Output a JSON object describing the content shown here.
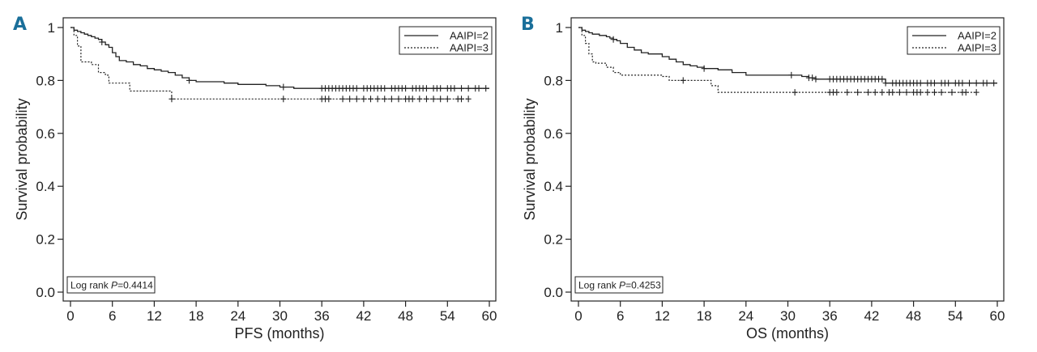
{
  "colors": {
    "panel_letter": "#1a6f9a",
    "line": "#222222"
  },
  "chart_data": [
    {
      "panel": "A",
      "type": "line",
      "xlabel": "PFS (months)",
      "ylabel": "Survival probability",
      "xlim": [
        0,
        60
      ],
      "ylim": [
        0,
        1
      ],
      "xticks": [
        0,
        6,
        12,
        18,
        24,
        30,
        36,
        42,
        48,
        54,
        60
      ],
      "yticks": [
        0.0,
        0.2,
        0.4,
        0.6,
        0.8,
        1
      ],
      "ytick_labels": [
        "0.0",
        "0.2",
        "0.4",
        "0.6",
        "0.8",
        "1"
      ],
      "grid": false,
      "legend_position": "top-right",
      "annotation": {
        "prefix": "Log rank ",
        "p_symbol": "P",
        "value": "=0.4414"
      },
      "series": [
        {
          "name": "AAIPI=2",
          "style": "solid",
          "x": [
            0,
            0.5,
            1,
            1.5,
            2,
            2.5,
            3,
            3.5,
            4,
            4.5,
            5,
            5.5,
            6,
            6.5,
            7,
            7.5,
            8,
            9,
            10,
            11,
            12,
            13,
            14,
            15,
            16,
            17,
            18,
            20,
            22,
            24,
            26,
            28,
            30,
            32,
            60
          ],
          "y": [
            1,
            0.99,
            0.985,
            0.98,
            0.975,
            0.97,
            0.965,
            0.96,
            0.955,
            0.945,
            0.935,
            0.925,
            0.905,
            0.89,
            0.875,
            0.875,
            0.87,
            0.86,
            0.855,
            0.845,
            0.84,
            0.835,
            0.83,
            0.82,
            0.81,
            0.8,
            0.795,
            0.795,
            0.79,
            0.785,
            0.785,
            0.78,
            0.775,
            0.77,
            0.77
          ],
          "censored": [
            4.5,
            17,
            30.5,
            36,
            36.5,
            37,
            37.5,
            38,
            38.5,
            39,
            39.5,
            40,
            40.5,
            41,
            42,
            42.5,
            43,
            43.5,
            44,
            44.5,
            45,
            46,
            46.5,
            47,
            47.5,
            48,
            49,
            49.5,
            50,
            50.5,
            51,
            52,
            52.5,
            53,
            54,
            54.5,
            55,
            56,
            57,
            58,
            58.5,
            59.5
          ]
        },
        {
          "name": "AAIPI=3",
          "style": "dotted",
          "x": [
            0,
            0.5,
            1,
            1.5,
            3,
            4,
            5,
            5.5,
            6,
            8.5,
            9.5,
            14.5,
            57
          ],
          "y": [
            1,
            0.97,
            0.93,
            0.87,
            0.86,
            0.83,
            0.82,
            0.79,
            0.79,
            0.76,
            0.76,
            0.73,
            0.73
          ],
          "censored": [
            14.5,
            30.5,
            36,
            36.5,
            37,
            39,
            40,
            41,
            42,
            43,
            44,
            45,
            46,
            47,
            48,
            48.5,
            49,
            50,
            51,
            52,
            53,
            54,
            55.5,
            56,
            57
          ]
        }
      ]
    },
    {
      "panel": "B",
      "type": "line",
      "xlabel": "OS (months)",
      "ylabel": "Survival probability",
      "xlim": [
        0,
        60
      ],
      "ylim": [
        0,
        1
      ],
      "xticks": [
        0,
        6,
        12,
        18,
        24,
        30,
        36,
        42,
        48,
        54,
        60
      ],
      "yticks": [
        0.0,
        0.2,
        0.4,
        0.6,
        0.8,
        1
      ],
      "ytick_labels": [
        "0.0",
        "0.2",
        "0.4",
        "0.6",
        "0.8",
        "1"
      ],
      "grid": false,
      "legend_position": "top-right",
      "annotation": {
        "prefix": "Log rank ",
        "p_symbol": "P",
        "value": "=0.4253"
      },
      "series": [
        {
          "name": "AAIPI=2",
          "style": "solid",
          "x": [
            0,
            0.5,
            1,
            1.5,
            2,
            3,
            4,
            4.5,
            5,
            5.5,
            6,
            7,
            8,
            9,
            10,
            12,
            13,
            14,
            15,
            16,
            17,
            18,
            20,
            22,
            24,
            28,
            30,
            32,
            33,
            34,
            44,
            60
          ],
          "y": [
            1,
            0.99,
            0.985,
            0.98,
            0.975,
            0.97,
            0.965,
            0.96,
            0.955,
            0.95,
            0.94,
            0.925,
            0.915,
            0.905,
            0.9,
            0.89,
            0.88,
            0.87,
            0.86,
            0.855,
            0.85,
            0.845,
            0.84,
            0.83,
            0.82,
            0.82,
            0.82,
            0.815,
            0.81,
            0.805,
            0.79,
            0.79
          ],
          "censored": [
            5,
            18,
            30.5,
            33,
            33.5,
            34,
            36,
            36.5,
            37,
            37.5,
            38,
            38.5,
            39,
            39.5,
            40,
            40.5,
            41,
            41.5,
            42,
            42.5,
            43,
            43.5,
            44,
            45,
            45.5,
            46,
            46.5,
            47,
            47.5,
            48,
            48.5,
            49,
            50,
            50.5,
            51,
            52,
            52.5,
            53,
            54,
            54.5,
            55,
            56,
            57,
            58,
            58.5,
            59.5
          ]
        },
        {
          "name": "AAIPI=3",
          "style": "dotted",
          "x": [
            0,
            0.5,
            1,
            1.5,
            2,
            2.5,
            4,
            5,
            6,
            12,
            13,
            18,
            19,
            20,
            57
          ],
          "y": [
            1,
            0.97,
            0.94,
            0.9,
            0.87,
            0.865,
            0.85,
            0.83,
            0.82,
            0.815,
            0.8,
            0.8,
            0.78,
            0.755,
            0.755
          ],
          "censored": [
            15,
            31,
            36,
            36.5,
            37,
            38.5,
            40,
            41.5,
            42.5,
            43.5,
            44.5,
            45,
            46,
            47,
            48,
            48.5,
            49,
            50,
            51,
            52,
            53.5,
            55,
            55.5,
            57
          ]
        }
      ]
    }
  ]
}
